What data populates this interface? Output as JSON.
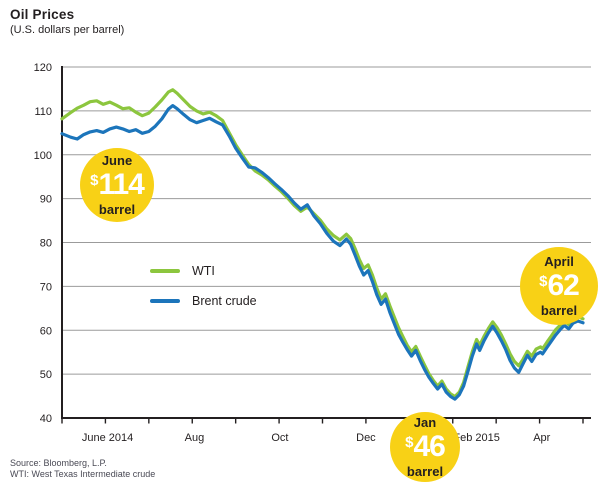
{
  "title": "Oil Prices",
  "subtitle": "(U.S. dollars per barrel)",
  "source_line1": "Source: Bloomberg, L.P.",
  "source_line2": "WTI: West Texas Intermediate crude",
  "legend": {
    "wti": "WTI",
    "brent": "Brent crude"
  },
  "colors": {
    "wti": "#8CC63E",
    "brent": "#1C75BB",
    "badge": "#F8D116",
    "grid": "#9B9B9B",
    "axis": "#231F20",
    "text": "#231F20",
    "source_text": "#4A4A55"
  },
  "callouts": [
    {
      "id": "june",
      "month": "June",
      "dollar": "$",
      "value": "114",
      "unit": "barrel"
    },
    {
      "id": "jan",
      "month": "Jan",
      "dollar": "$",
      "value": "46",
      "unit": "barrel"
    },
    {
      "id": "april",
      "month": "April",
      "dollar": "$",
      "value": "62",
      "unit": "barrel"
    }
  ],
  "chart_data": {
    "type": "line",
    "title": "Oil Prices",
    "ylabel": "U.S. dollars per barrel",
    "ylim": [
      40,
      120
    ],
    "yticks": [
      120,
      110,
      100,
      90,
      80,
      70,
      60,
      50,
      40
    ],
    "grid": "horizontal",
    "legend_position": "inside-left",
    "x_unit": "months since May 2014",
    "xlim": [
      0,
      12
    ],
    "x_tick_count": 13,
    "x_tick_labels": [
      {
        "label": "June 2014",
        "t": 1.05
      },
      {
        "label": "Aug",
        "t": 3.05
      },
      {
        "label": "Oct",
        "t": 5.02
      },
      {
        "label": "Dec",
        "t": 7.0
      },
      {
        "label": "Feb 2015",
        "t": 9.55
      },
      {
        "label": "Apr",
        "t": 11.05
      }
    ],
    "annotations": [
      {
        "label": "June $114 barrel",
        "t": 1.27,
        "value": 114
      },
      {
        "label": "Jan $46 barrel",
        "t": 8.36,
        "value": 46
      },
      {
        "label": "April $62 barrel",
        "t": 11.45,
        "value": 62
      }
    ],
    "t": [
      0.0,
      0.2,
      0.35,
      0.5,
      0.65,
      0.8,
      0.95,
      1.1,
      1.25,
      1.4,
      1.55,
      1.7,
      1.85,
      2.0,
      2.15,
      2.3,
      2.45,
      2.55,
      2.65,
      2.8,
      2.95,
      3.1,
      3.25,
      3.4,
      3.55,
      3.7,
      3.85,
      4.0,
      4.15,
      4.3,
      4.45,
      4.6,
      4.75,
      4.9,
      5.05,
      5.2,
      5.35,
      5.5,
      5.65,
      5.8,
      5.95,
      6.1,
      6.25,
      6.4,
      6.55,
      6.65,
      6.75,
      6.85,
      6.95,
      7.05,
      7.15,
      7.25,
      7.35,
      7.45,
      7.55,
      7.65,
      7.75,
      7.85,
      7.95,
      8.05,
      8.15,
      8.25,
      8.35,
      8.45,
      8.55,
      8.65,
      8.75,
      8.85,
      8.95,
      9.05,
      9.15,
      9.25,
      9.35,
      9.45,
      9.55,
      9.62,
      9.72,
      9.82,
      9.92,
      10.02,
      10.12,
      10.22,
      10.32,
      10.42,
      10.52,
      10.62,
      10.72,
      10.82,
      10.92,
      11.02,
      11.07,
      11.17,
      11.27,
      11.37,
      11.47,
      11.57,
      11.67,
      11.77,
      11.88,
      12.0
    ],
    "series": [
      {
        "name": "WTI",
        "color": "#8CC63E",
        "values": [
          108.2,
          109.6,
          110.6,
          111.3,
          112.1,
          112.3,
          111.5,
          112.0,
          111.3,
          110.5,
          110.7,
          109.7,
          108.9,
          109.5,
          110.9,
          112.5,
          114.3,
          114.8,
          114.0,
          112.5,
          111.0,
          110.0,
          109.3,
          109.7,
          108.9,
          107.8,
          105.0,
          102.3,
          100.0,
          97.8,
          96.3,
          95.4,
          94.3,
          92.9,
          91.6,
          90.1,
          88.4,
          87.1,
          88.1,
          86.6,
          85.1,
          83.1,
          81.6,
          80.6,
          81.9,
          80.9,
          78.6,
          76.1,
          74.1,
          74.9,
          72.6,
          69.6,
          67.1,
          68.3,
          65.6,
          63.1,
          60.6,
          58.6,
          56.6,
          55.1,
          56.3,
          54.1,
          52.1,
          50.1,
          48.6,
          47.3,
          48.4,
          46.6,
          45.5,
          44.9,
          45.9,
          48.1,
          51.6,
          55.1,
          57.9,
          56.6,
          58.6,
          60.4,
          61.9,
          60.6,
          58.9,
          56.9,
          54.6,
          52.9,
          51.9,
          53.4,
          55.2,
          54.1,
          55.7,
          56.2,
          55.8,
          57.3,
          58.7,
          60.1,
          61.1,
          62.1,
          61.3,
          62.5,
          63.1,
          62.6
        ]
      },
      {
        "name": "Brent crude",
        "color": "#1C75BB",
        "values": [
          104.8,
          104.0,
          103.6,
          104.6,
          105.2,
          105.5,
          105.1,
          105.9,
          106.3,
          105.9,
          105.3,
          105.7,
          104.9,
          105.3,
          106.5,
          108.2,
          110.4,
          111.2,
          110.5,
          109.2,
          108.0,
          107.3,
          107.8,
          108.3,
          107.5,
          106.8,
          104.3,
          101.5,
          99.3,
          97.2,
          97.0,
          96.0,
          94.8,
          93.4,
          92.1,
          90.7,
          89.0,
          87.6,
          88.6,
          86.1,
          84.3,
          82.1,
          80.3,
          79.3,
          80.8,
          79.6,
          77.1,
          74.6,
          72.6,
          73.6,
          71.1,
          68.1,
          65.9,
          67.1,
          64.1,
          61.6,
          59.1,
          57.3,
          55.6,
          54.1,
          55.4,
          53.1,
          51.1,
          49.3,
          47.9,
          46.6,
          47.7,
          45.9,
          44.9,
          44.3,
          45.3,
          47.3,
          50.6,
          54.1,
          56.9,
          55.4,
          57.6,
          59.4,
          60.9,
          59.4,
          57.6,
          55.6,
          53.1,
          51.4,
          50.4,
          52.4,
          54.3,
          52.9,
          54.5,
          55.0,
          54.6,
          56.1,
          57.5,
          58.9,
          60.1,
          61.1,
          60.3,
          61.6,
          62.1,
          61.7
        ]
      }
    ]
  }
}
